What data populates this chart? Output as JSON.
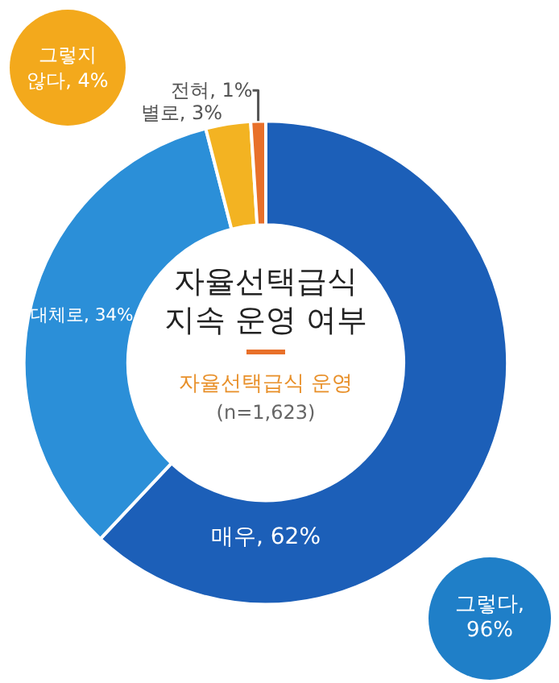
{
  "chart_data": {
    "type": "donut",
    "title": "자율선택급식 지속 운영 여부",
    "subtitle": "자율선택급식 운영",
    "categories": [
      "매우",
      "대체로",
      "별로",
      "전혀"
    ],
    "values": [
      62,
      34,
      3,
      1
    ],
    "value_labels": [
      "62%",
      "34%",
      "3%",
      "1%"
    ],
    "colors": [
      "#1c5fb8",
      "#2b8fd8",
      "#f3b322",
      "#e8702a"
    ],
    "annotations": [
      "(n=1,623)",
      "그렇다, 96%",
      "그렇지 않다, 4%"
    ],
    "legend": false
  }
}
